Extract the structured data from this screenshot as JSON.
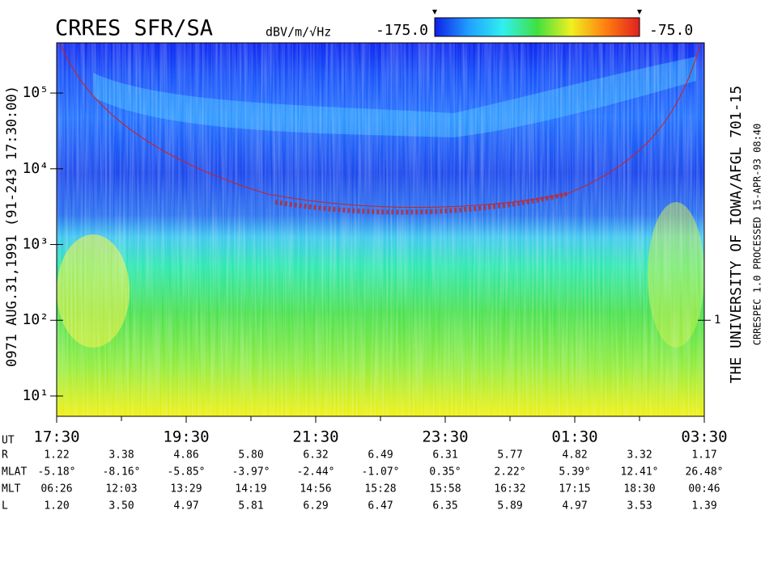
{
  "chart_data": {
    "type": "spectrogram",
    "title": "CRRES SFR/SA",
    "colorbar": {
      "unit": "dBV/m/√Hz",
      "clim": [
        -175,
        -75
      ],
      "ticks": [
        {
          "value": -175,
          "label": "-175.0"
        },
        {
          "value": -75,
          "label": "-75.0"
        }
      ],
      "colors": [
        "#1020e8",
        "#20a0ff",
        "#30f0f0",
        "#40e040",
        "#f0f020",
        "#ff8010",
        "#e02020"
      ]
    },
    "left_label": "0971  AUG.31,1991  (91-243 17:30:00)",
    "right_label": "THE UNIVERSITY OF IOWA/AFGL 701-15",
    "right_label_2": "CRRESPEC 1.0  PROCESSED 15-APR-93  08:40",
    "log_y": true,
    "ylim": [
      5.4,
      460000
    ],
    "yticks": [
      {
        "value": 10,
        "label": "10¹"
      },
      {
        "value": 100,
        "label": "10²"
      },
      {
        "value": 1000,
        "label": "10³"
      },
      {
        "value": 10000,
        "label": "10⁴"
      },
      {
        "value": 100000,
        "label": "10⁵"
      }
    ],
    "y2lim": [
      0.054,
      4600
    ],
    "y2ticks": [
      1
    ],
    "xlim": [
      0,
      10
    ],
    "xticks": [
      {
        "value": 0,
        "label": "17:30"
      },
      {
        "value": 2,
        "label": "19:30"
      },
      {
        "value": 4,
        "label": "21:30"
      },
      {
        "value": 6,
        "label": "23:30"
      },
      {
        "value": 8,
        "label": "01:30"
      },
      {
        "value": 10,
        "label": "03:30"
      }
    ],
    "xminor": [
      1,
      3,
      5,
      7,
      9
    ],
    "x_label": "UT",
    "ephemeris": [
      {
        "label": "R",
        "values": [
          "1.22",
          "3.38",
          "4.86",
          "5.80",
          "6.32",
          "6.49",
          "6.31",
          "5.77",
          "4.82",
          "3.32",
          "1.17"
        ]
      },
      {
        "label": "MLAT",
        "values": [
          "-5.18°",
          "-8.16°",
          "-5.85°",
          "-3.97°",
          "-2.44°",
          "-1.07°",
          "0.35°",
          "2.22°",
          "5.39°",
          "12.41°",
          "26.48°"
        ]
      },
      {
        "label": "MLT",
        "values": [
          "06:26",
          "12:03",
          "13:29",
          "14:19",
          "14:56",
          "15:28",
          "15:58",
          "16:32",
          "17:15",
          "18:30",
          "00:46"
        ]
      },
      {
        "label": "L",
        "values": [
          "1.20",
          "3.50",
          "4.97",
          "5.81",
          "6.29",
          "6.47",
          "6.35",
          "5.89",
          "4.97",
          "3.53",
          "1.39"
        ]
      }
    ]
  }
}
